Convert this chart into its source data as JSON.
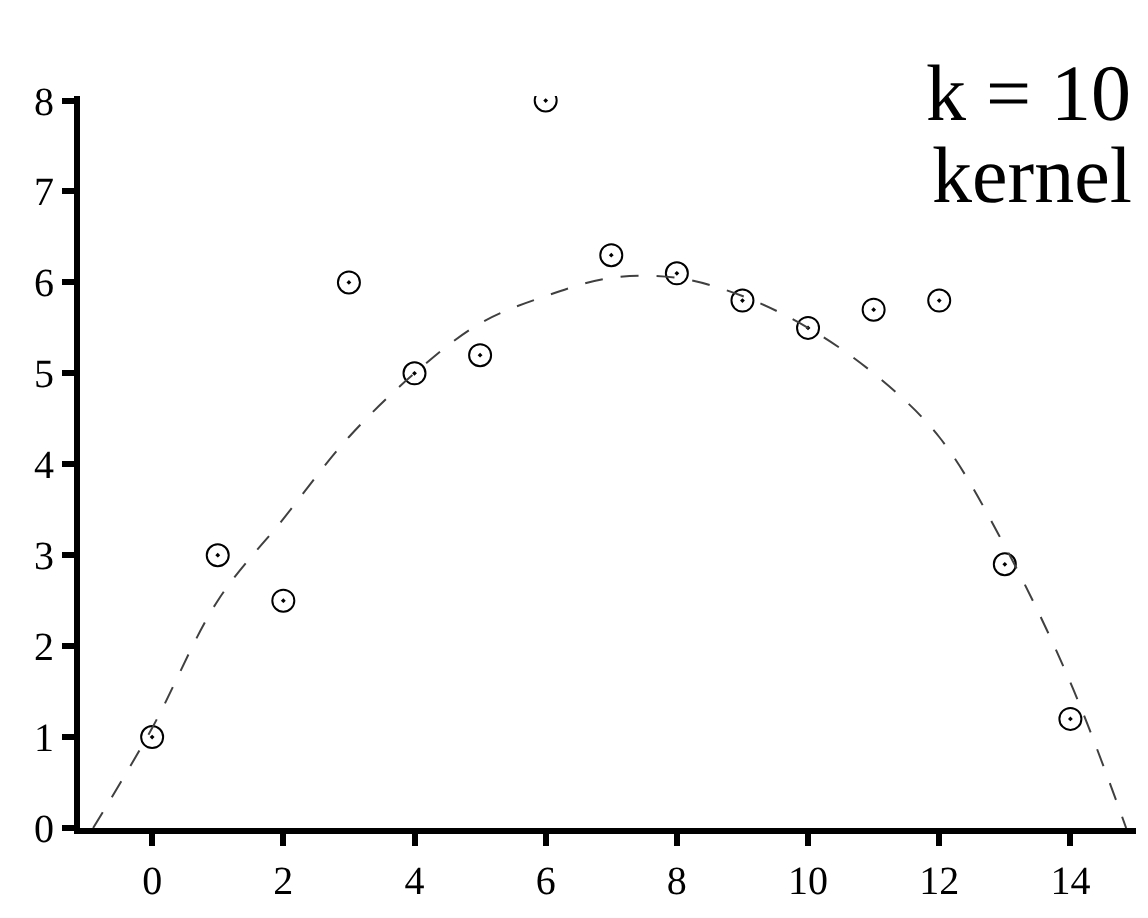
{
  "chart_data": {
    "type": "scatter",
    "x": [
      0,
      1,
      2,
      3,
      4,
      5,
      6,
      7,
      8,
      9,
      10,
      11,
      12,
      13,
      14
    ],
    "series": [
      {
        "color": "#000000",
        "marker": "circle",
        "values": [
          1,
          3,
          2.5,
          6,
          5,
          5.2,
          8,
          6.3,
          6.1,
          5.8,
          5.5,
          5.7,
          5.8,
          2.9,
          1.2
        ]
      },
      {
        "type": "line",
        "color": "#404040",
        "line_style": "dashed",
        "x": [
          -0.9,
          0,
          1,
          2,
          3,
          4,
          5,
          6,
          7,
          8,
          9,
          10,
          11,
          12,
          13,
          14,
          14.85
        ],
        "values": [
          0,
          1.1,
          2.5,
          3.4,
          4.3,
          5.0,
          5.55,
          5.85,
          6.05,
          6.05,
          5.85,
          5.5,
          5.0,
          4.3,
          3.1,
          1.6,
          0
        ]
      }
    ],
    "xlim": [
      -1.1,
      15
    ],
    "ylim": [
      0,
      8.05
    ],
    "xticks": [
      0,
      2,
      4,
      6,
      8,
      10,
      12,
      14
    ],
    "yticks": [
      0,
      1,
      2,
      3,
      4,
      5,
      6,
      7,
      8
    ],
    "annotations": [
      "k = 10",
      "kernel"
    ]
  }
}
